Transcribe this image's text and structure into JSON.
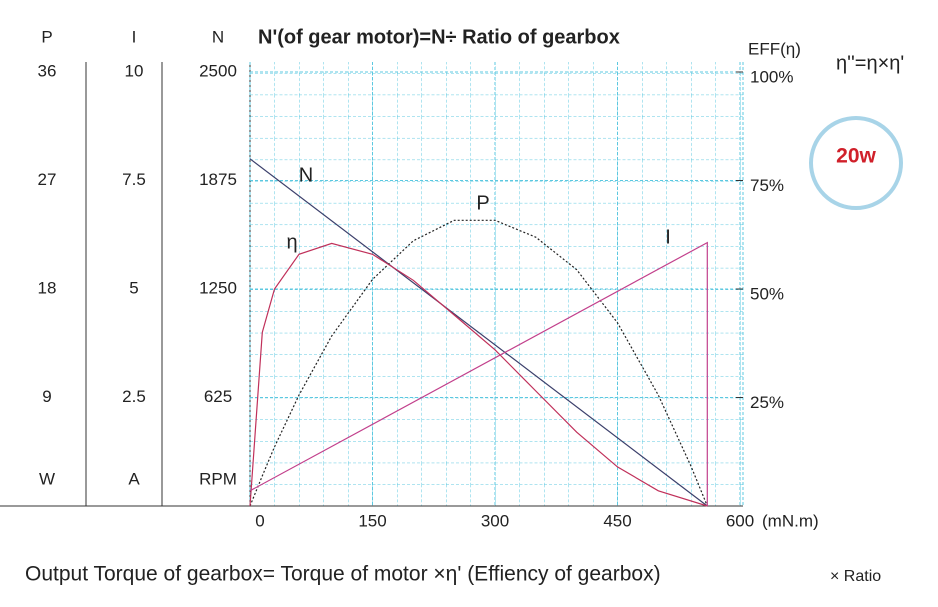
{
  "chart_data": {
    "type": "line",
    "title": "N'(of gear motor)=N÷ Ratio of gearbox",
    "annotation": "η''=η×η'",
    "badge": "20w",
    "caption": "Output Torque of gearbox= Torque of motor ×η' (Effiency of gearbox)",
    "caption_suffix": "× Ratio",
    "xlim": [
      0,
      600
    ],
    "xticks": [
      0,
      150,
      300,
      450,
      600
    ],
    "x_label": "(mN.m)",
    "grid": true,
    "y_axes": [
      {
        "title": "P",
        "unit": "W",
        "ylim": [
          0,
          36
        ],
        "yticks": [
          9,
          18,
          27,
          36
        ]
      },
      {
        "title": "I",
        "unit": "A",
        "ylim": [
          0,
          10
        ],
        "yticks": [
          2.5,
          5,
          7.5,
          10
        ]
      },
      {
        "title": "N",
        "unit": "RPM",
        "ylim": [
          0,
          2500
        ],
        "yticks": [
          625,
          1250,
          1875,
          2500
        ]
      },
      {
        "title": "EFF(η)",
        "ylim": [
          0,
          100
        ],
        "yticks": [
          {
            "value": 25,
            "label": "25%"
          },
          {
            "value": 50,
            "label": "50%"
          },
          {
            "value": 75,
            "label": "75%"
          },
          {
            "value": 100,
            "label": "100%"
          }
        ]
      }
    ],
    "series": [
      {
        "name": "N",
        "color": "#3b3f6b",
        "axis": 2,
        "x": [
          0,
          560
        ],
        "values": [
          2000,
          0
        ]
      },
      {
        "name": "P",
        "color": "#222222",
        "axis": 0,
        "dashed": true,
        "x": [
          0,
          15,
          30,
          60,
          100,
          150,
          200,
          250,
          300,
          350,
          400,
          450,
          500,
          540,
          560
        ],
        "values": [
          0,
          2.5,
          4.9,
          9.2,
          14.1,
          18.8,
          22.0,
          23.7,
          23.7,
          22.3,
          19.6,
          15.2,
          9.2,
          3.3,
          0
        ]
      },
      {
        "name": "η",
        "color": "#c0305a",
        "axis": 3,
        "x": [
          0,
          15,
          30,
          60,
          100,
          150,
          200,
          250,
          300,
          350,
          400,
          450,
          500,
          560
        ],
        "values": [
          0,
          40,
          50,
          58,
          60.5,
          58,
          52,
          44,
          36,
          26.5,
          17,
          9,
          3.5,
          0
        ]
      },
      {
        "name": "I",
        "color": "#c2408c",
        "axis": 1,
        "x": [
          0,
          560,
          560
        ],
        "values": [
          0.35,
          6.07,
          0
        ]
      }
    ]
  }
}
